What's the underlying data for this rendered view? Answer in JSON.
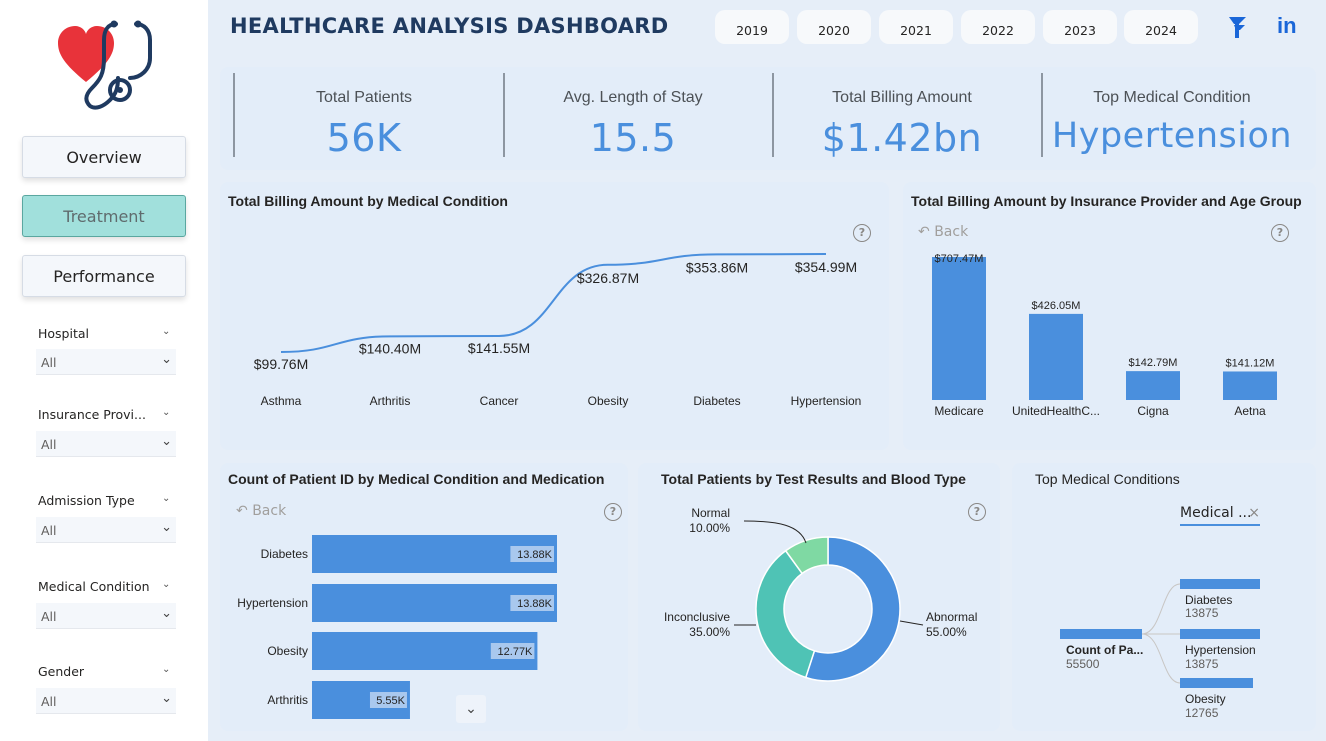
{
  "header": {
    "title": "HEALTHCARE ANALYSIS DASHBOARD",
    "years": [
      "2019",
      "2020",
      "2021",
      "2022",
      "2023",
      "2024"
    ]
  },
  "nav": {
    "overview": "Overview",
    "treatment": "Treatment",
    "performance": "Performance"
  },
  "slicers": [
    {
      "title": "Hospital",
      "value": "All"
    },
    {
      "title": "Insurance Provi...",
      "value": "All"
    },
    {
      "title": "Admission Type",
      "value": "All"
    },
    {
      "title": "Medical Condition",
      "value": "All"
    },
    {
      "title": "Gender",
      "value": "All"
    }
  ],
  "kpis": [
    {
      "label": "Total Patients",
      "value": "56K"
    },
    {
      "label": "Avg. Length of Stay",
      "value": "15.5"
    },
    {
      "label": "Total Billing Amount",
      "value": "$1.42bn"
    },
    {
      "label": "Top Medical Condition",
      "value": "Hypertension"
    }
  ],
  "billing_by_condition": {
    "title": "Total Billing Amount by Medical Condition",
    "labels": [
      "$99.76M",
      "$140.40M",
      "$141.55M",
      "$326.87M",
      "$353.86M",
      "$354.99M"
    ]
  },
  "billing_by_insurance": {
    "title": "Total Billing Amount by Insurance Provider and Age Group",
    "back": "Back",
    "labels": [
      "$707.47M",
      "$426.05M",
      "$142.79M",
      "$141.12M"
    ]
  },
  "count_by_condition_med": {
    "title": "Count of Patient ID by Medical Condition and Medication",
    "back": "Back",
    "labels": [
      "13.88K",
      "13.88K",
      "12.77K",
      "5.55K"
    ]
  },
  "patients_by_test": {
    "title": "Total Patients by Test Results and Blood Type",
    "segments": [
      {
        "name": "Normal",
        "pct": "10.00%"
      },
      {
        "name": "Inconclusive",
        "pct": "35.00%"
      },
      {
        "name": "Abnormal",
        "pct": "55.00%"
      }
    ]
  },
  "top_conditions": {
    "title": "Top Medical Conditions",
    "filter_label": "Medical ...",
    "root": {
      "label": "Count of Pa...",
      "value": "55500"
    },
    "children": [
      {
        "label": "Diabetes",
        "value": "13875"
      },
      {
        "label": "Hypertension",
        "value": "13875"
      },
      {
        "label": "Obesity",
        "value": "12765"
      }
    ]
  },
  "chart_data": [
    {
      "type": "line",
      "title": "Total Billing Amount by Medical Condition",
      "categories": [
        "Asthma",
        "Arthritis",
        "Cancer",
        "Obesity",
        "Diabetes",
        "Hypertension"
      ],
      "values": [
        99.76,
        140.4,
        141.55,
        326.87,
        353.86,
        354.99
      ],
      "unit": "$M"
    },
    {
      "type": "bar",
      "title": "Total Billing Amount by Insurance Provider and Age Group",
      "categories": [
        "Medicare",
        "UnitedHealthC...",
        "Cigna",
        "Aetna"
      ],
      "values": [
        707.47,
        426.05,
        142.79,
        141.12
      ],
      "unit": "$M"
    },
    {
      "type": "bar",
      "orientation": "horizontal",
      "title": "Count of Patient ID by Medical Condition and Medication",
      "categories": [
        "Diabetes",
        "Hypertension",
        "Obesity",
        "Arthritis"
      ],
      "values": [
        13.88,
        13.88,
        12.77,
        5.55
      ],
      "unit": "K"
    },
    {
      "type": "pie",
      "title": "Total Patients by Test Results and Blood Type",
      "categories": [
        "Abnormal",
        "Inconclusive",
        "Normal"
      ],
      "values": [
        55.0,
        35.0,
        10.0
      ],
      "unit": "%",
      "colors": [
        "#4a8fdd",
        "#4fc3b5",
        "#7fd9a3"
      ]
    }
  ],
  "colors": {
    "accent": "#4a8fdd",
    "title": "#1f3a60",
    "active_nav": "#a1e0dc",
    "card": "#e3edf9"
  }
}
